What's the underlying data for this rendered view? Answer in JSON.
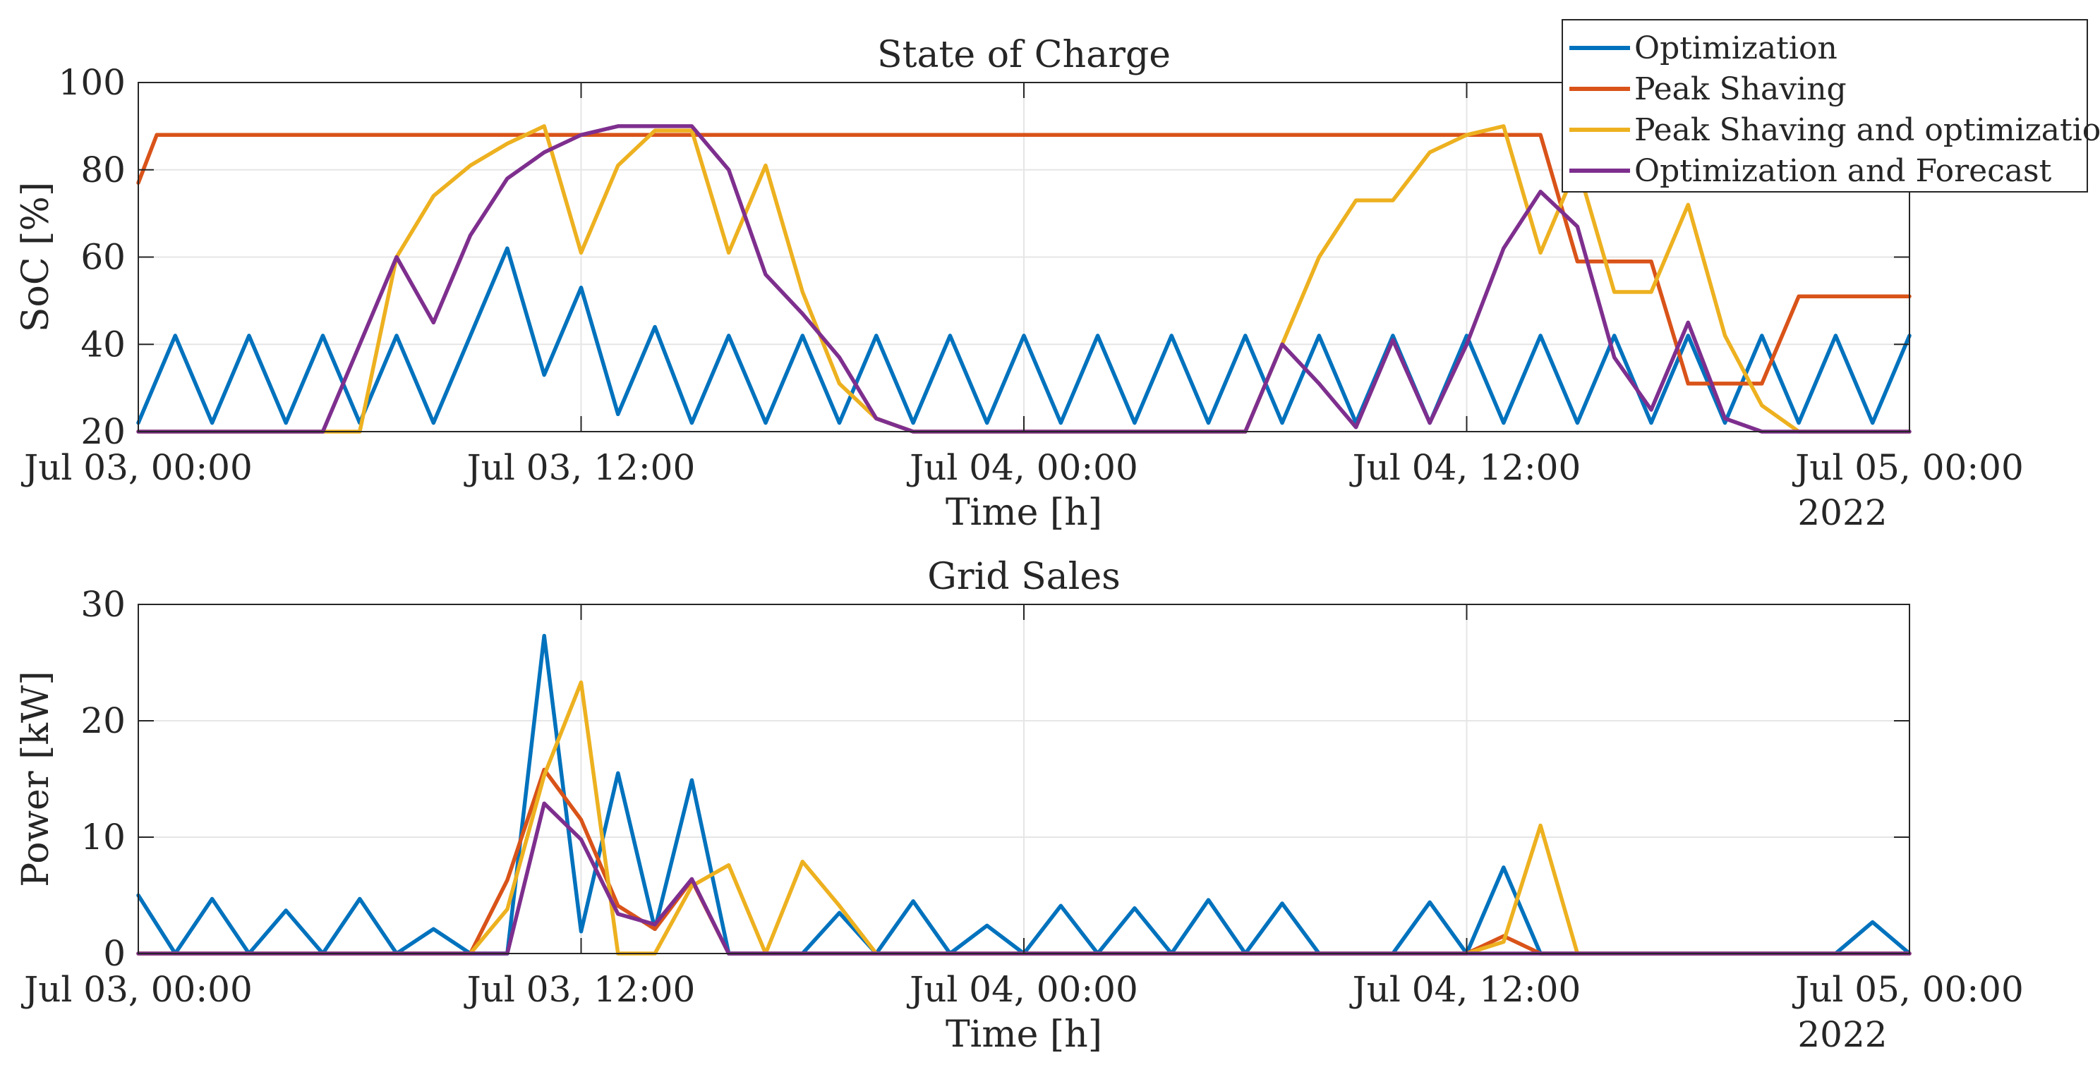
{
  "chart_data": [
    {
      "type": "line",
      "title": "State of Charge",
      "xlabel": "Time [h]",
      "ylabel": "SoC [%]",
      "x_unit": "hours since Jul 03, 00:00",
      "xlim": [
        0,
        48
      ],
      "ylim": [
        20,
        100
      ],
      "yticks": [
        20,
        40,
        60,
        80,
        100
      ],
      "xticks": [
        {
          "value": 0,
          "label": "Jul 03, 00:00"
        },
        {
          "value": 12,
          "label": "Jul 03, 12:00"
        },
        {
          "value": 24,
          "label": "Jul 04, 00:00"
        },
        {
          "value": 36,
          "label": "Jul 04, 12:00"
        },
        {
          "value": 48,
          "label": "Jul 05, 00:00"
        }
      ],
      "year_label": "2022",
      "grid": true,
      "series": [
        {
          "name": "Optimization",
          "color": "#0072BD",
          "x": [
            0,
            1,
            2,
            3,
            4,
            5,
            6,
            7,
            8,
            9,
            10,
            11,
            12,
            13,
            14,
            15,
            16,
            17,
            18,
            19,
            20,
            21,
            22,
            23,
            24,
            25,
            26,
            27,
            28,
            29,
            30,
            31,
            32,
            33,
            34,
            35,
            36,
            37,
            38,
            39,
            40,
            41,
            42,
            43,
            44,
            45,
            46,
            47,
            48
          ],
          "values": [
            22,
            42,
            22,
            42,
            22,
            42,
            22,
            42,
            22,
            42,
            62,
            33,
            53,
            24,
            44,
            22,
            42,
            22,
            42,
            22,
            42,
            22,
            42,
            22,
            42,
            22,
            42,
            22,
            42,
            22,
            42,
            22,
            42,
            22,
            42,
            22,
            42,
            22,
            42,
            22,
            42,
            22,
            42,
            22,
            42,
            22,
            42,
            22,
            42
          ]
        },
        {
          "name": "Peak Shaving",
          "color": "#D95319",
          "x": [
            0,
            0.5,
            38,
            39,
            40,
            41,
            42,
            43,
            44,
            45,
            46,
            47,
            48
          ],
          "values": [
            77,
            88,
            88,
            59,
            59,
            59,
            31,
            31,
            31,
            51,
            51,
            51,
            51
          ]
        },
        {
          "name": "Peak Shaving and optimization",
          "color": "#EDB120",
          "x": [
            0,
            1,
            2,
            3,
            4,
            5,
            6,
            7,
            8,
            9,
            10,
            11,
            12,
            13,
            14,
            15,
            16,
            17,
            18,
            19,
            20,
            21,
            22,
            23,
            24,
            25,
            26,
            27,
            28,
            29,
            30,
            31,
            32,
            33,
            34,
            35,
            36,
            37,
            38,
            39,
            40,
            41,
            42,
            43,
            44,
            45,
            46,
            47,
            48
          ],
          "values": [
            20,
            20,
            20,
            20,
            20,
            20,
            20,
            60,
            74,
            81,
            86,
            90,
            61,
            81,
            89,
            89,
            61,
            81,
            52,
            31,
            23,
            20,
            20,
            20,
            20,
            20,
            20,
            20,
            20,
            20,
            20,
            40,
            60,
            73,
            73,
            84,
            88,
            90,
            61,
            81,
            52,
            52,
            72,
            42,
            26,
            20,
            20,
            20,
            20
          ]
        },
        {
          "name": "Optimization and Forecast",
          "color": "#7E2F8E",
          "x": [
            0,
            1,
            2,
            3,
            4,
            5,
            6,
            7,
            8,
            9,
            10,
            11,
            12,
            13,
            14,
            15,
            16,
            17,
            18,
            19,
            20,
            21,
            22,
            23,
            24,
            25,
            26,
            27,
            28,
            29,
            30,
            31,
            32,
            33,
            34,
            35,
            36,
            37,
            38,
            39,
            40,
            41,
            42,
            43,
            44,
            45,
            46,
            47,
            48
          ],
          "values": [
            20,
            20,
            20,
            20,
            20,
            20,
            40,
            60,
            45,
            65,
            78,
            84,
            88,
            90,
            90,
            90,
            80,
            56,
            47,
            37,
            23,
            20,
            20,
            20,
            20,
            20,
            20,
            20,
            20,
            20,
            20,
            40,
            31,
            21,
            41,
            22,
            40,
            62,
            75,
            67,
            37,
            25,
            45,
            23,
            20,
            20,
            20,
            20,
            20
          ]
        }
      ]
    },
    {
      "type": "line",
      "title": "Grid Sales",
      "xlabel": "Time [h]",
      "ylabel": "Power [kW]",
      "x_unit": "hours since Jul 03, 00:00",
      "xlim": [
        0,
        48
      ],
      "ylim": [
        0,
        30
      ],
      "yticks": [
        0,
        10,
        20,
        30
      ],
      "xticks": [
        {
          "value": 0,
          "label": "Jul 03, 00:00"
        },
        {
          "value": 12,
          "label": "Jul 03, 12:00"
        },
        {
          "value": 24,
          "label": "Jul 04, 00:00"
        },
        {
          "value": 36,
          "label": "Jul 04, 12:00"
        },
        {
          "value": 48,
          "label": "Jul 05, 00:00"
        }
      ],
      "year_label": "2022",
      "grid": true,
      "series": [
        {
          "name": "Optimization",
          "color": "#0072BD",
          "x": [
            0,
            1,
            2,
            3,
            4,
            5,
            6,
            7,
            8,
            9,
            10,
            11,
            12,
            13,
            14,
            15,
            16,
            17,
            18,
            19,
            20,
            21,
            22,
            23,
            24,
            25,
            26,
            27,
            28,
            29,
            30,
            31,
            32,
            33,
            34,
            35,
            36,
            37,
            38,
            39,
            40,
            41,
            42,
            43,
            44,
            45,
            46,
            47,
            48
          ],
          "values": [
            5,
            0,
            4.7,
            0,
            3.7,
            0,
            4.7,
            0,
            2.1,
            0,
            0,
            27.3,
            1.9,
            15.5,
            2.1,
            14.9,
            0,
            0,
            0,
            3.5,
            0,
            4.5,
            0,
            2.4,
            0,
            4.1,
            0,
            3.9,
            0,
            4.6,
            0,
            4.3,
            0,
            0,
            0,
            4.4,
            0,
            7.4,
            0,
            0,
            0,
            0,
            0,
            0,
            0,
            0,
            0,
            2.7,
            0
          ]
        },
        {
          "name": "Peak Shaving",
          "color": "#D95319",
          "x": [
            0,
            9,
            10,
            11,
            12,
            13,
            14,
            15,
            16,
            17,
            18,
            19,
            20,
            21,
            22,
            23,
            24,
            25,
            26,
            27,
            28,
            29,
            30,
            31,
            32,
            33,
            34,
            35,
            36,
            37,
            38,
            39,
            40,
            41,
            42,
            43,
            44,
            45,
            46,
            47,
            48
          ],
          "values": [
            0,
            0,
            6.3,
            15.8,
            11.5,
            4.1,
            2.1,
            6.3,
            0,
            0,
            0,
            0,
            0,
            0,
            0,
            0,
            0,
            0,
            0,
            0,
            0,
            0,
            0,
            0,
            0,
            0,
            0,
            0,
            0,
            1.5,
            0,
            0,
            0,
            0,
            0,
            0,
            0,
            0,
            0,
            0,
            0
          ]
        },
        {
          "name": "Peak Shaving and optimization",
          "color": "#EDB120",
          "x": [
            0,
            9,
            10,
            11,
            12,
            13,
            14,
            15,
            16,
            17,
            18,
            19,
            20,
            21,
            22,
            23,
            24,
            25,
            26,
            27,
            28,
            29,
            30,
            31,
            32,
            33,
            34,
            35,
            36,
            37,
            38,
            39,
            40,
            41,
            42,
            43,
            44,
            45,
            46,
            47,
            48
          ],
          "values": [
            0,
            0,
            3.8,
            15.3,
            23.3,
            0,
            0,
            5.8,
            7.6,
            0,
            7.9,
            4.1,
            0,
            0,
            0,
            0,
            0,
            0,
            0,
            0,
            0,
            0,
            0,
            0,
            0,
            0,
            0,
            0,
            0,
            1,
            11,
            0,
            0,
            0,
            0,
            0,
            0,
            0,
            0,
            0,
            0
          ]
        },
        {
          "name": "Optimization and Forecast",
          "color": "#7E2F8E",
          "x": [
            0,
            9,
            10,
            11,
            12,
            13,
            14,
            15,
            16,
            17,
            18,
            19,
            20,
            21,
            22,
            23,
            24,
            25,
            26,
            27,
            28,
            29,
            30,
            31,
            32,
            33,
            34,
            35,
            36,
            37,
            38,
            39,
            40,
            41,
            42,
            43,
            44,
            45,
            46,
            47,
            48
          ],
          "values": [
            0,
            0,
            0,
            12.9,
            9.8,
            3.4,
            2.5,
            6.4,
            0,
            0,
            0,
            0,
            0,
            0,
            0,
            0,
            0,
            0,
            0,
            0,
            0,
            0,
            0,
            0,
            0,
            0,
            0,
            0,
            0,
            0,
            0,
            0,
            0,
            0,
            0,
            0,
            0,
            0,
            0,
            0,
            0
          ]
        }
      ]
    }
  ],
  "legend": {
    "placement": "top-right",
    "entries": [
      {
        "label": "Optimization",
        "color": "#0072BD"
      },
      {
        "label": "Peak Shaving",
        "color": "#D95319"
      },
      {
        "label": "Peak Shaving and optimization",
        "color": "#EDB120"
      },
      {
        "label": "Optimization and Forecast",
        "color": "#7E2F8E"
      }
    ]
  }
}
